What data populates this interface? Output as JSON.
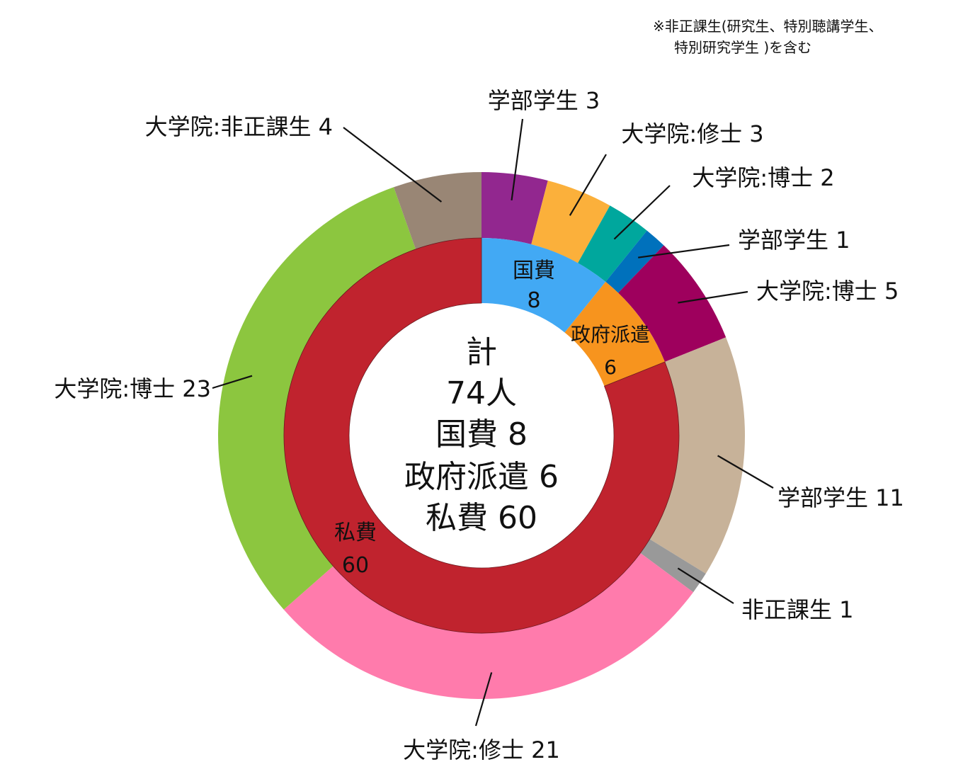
{
  "footnote": {
    "line1": "※非正課生(研究生、特別聴講学生、",
    "line2": "特別研究学生 )を含む"
  },
  "center": {
    "line1": "計",
    "line2": "74人",
    "line3": "国費 8",
    "line4": "政府派遣 6",
    "line5": "私費 60"
  },
  "chart_data": {
    "type": "pie",
    "variant": "donut (two rings)",
    "total": 74,
    "inner_ring": [
      {
        "name": "国費",
        "value": 8,
        "color": "#42a9f4",
        "label_line1": "国費",
        "label_line2": "8"
      },
      {
        "name": "政府派遣",
        "value": 6,
        "color": "#f7941e",
        "label_line1": "政府派遣",
        "label_line2": "6"
      },
      {
        "name": "私費",
        "value": 60,
        "color": "#c0232e",
        "label_line1": "私費",
        "label_line2": "60"
      }
    ],
    "outer_ring": [
      {
        "name": "学部学生",
        "value": 3,
        "color": "#92278f",
        "label": "学部学生 3"
      },
      {
        "name": "大学院:修士",
        "value": 3,
        "color": "#fbb03b",
        "label": "大学院:修士 3"
      },
      {
        "name": "大学院:博士",
        "value": 2,
        "color": "#00a79d",
        "label": "大学院:博士 2"
      },
      {
        "name": "学部学生",
        "value": 1,
        "color": "#0071bc",
        "label": "学部学生 1"
      },
      {
        "name": "大学院:博士",
        "value": 5,
        "color": "#9e005d",
        "label": "大学院:博士 5"
      },
      {
        "name": "学部学生",
        "value": 11,
        "color": "#c7b299",
        "label": "学部学生 11"
      },
      {
        "name": "非正課生",
        "value": 1,
        "color": "#999999",
        "label": "非正課生 1"
      },
      {
        "name": "大学院:修士",
        "value": 21,
        "color": "#ff7bac",
        "label": "大学院:修士 21"
      },
      {
        "name": "大学院:博士",
        "value": 23,
        "color": "#8cc63f",
        "label": "大学院:博士 23"
      },
      {
        "name": "大学院:非正課生",
        "value": 4,
        "color": "#998675",
        "label": "大学院:非正課生 4"
      }
    ]
  }
}
